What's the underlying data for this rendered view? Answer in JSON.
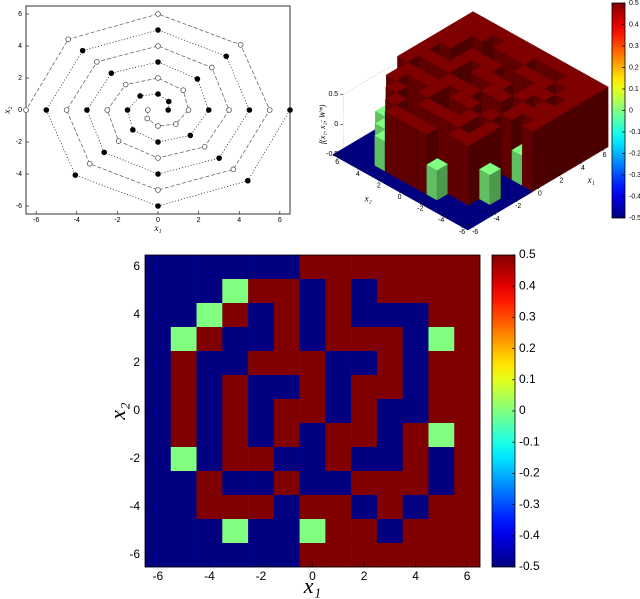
{
  "chart_data": [
    {
      "type": "scatter",
      "xlabel": "x₁",
      "ylabel": "x₂",
      "xlim": [
        -6.5,
        6.5
      ],
      "ylim": [
        -6.5,
        6.5
      ],
      "xticks": [
        -6,
        -4,
        -2,
        0,
        2,
        4,
        6
      ],
      "yticks": [
        -6,
        -4,
        -2,
        0,
        2,
        4,
        6
      ],
      "series": [
        {
          "color": "#000000",
          "marker": "filled",
          "line": "dotted",
          "x": [
            0.5,
            0.53,
            0,
            -0.88,
            -1.5,
            -1.24,
            0,
            1.59,
            2.5,
            1.94,
            0,
            -2.3,
            -3.5,
            -2.65,
            0,
            3.01,
            4.5,
            3.36,
            0,
            -3.71,
            -5.5,
            -4.07,
            0,
            4.42,
            6.5
          ],
          "y": [
            0,
            0.53,
            1.0,
            0.88,
            0,
            -1.24,
            -2.0,
            -1.59,
            0,
            1.94,
            3.0,
            2.3,
            0,
            -2.65,
            -4.0,
            -3.01,
            0,
            3.36,
            5.0,
            3.71,
            0,
            -4.07,
            -6.0,
            -4.42,
            0
          ]
        },
        {
          "color": "#555555",
          "marker": "open",
          "line": "dashed",
          "x": [
            -0.5,
            -0.53,
            0,
            0.88,
            1.5,
            1.24,
            0,
            -1.59,
            -2.5,
            -1.94,
            0,
            2.3,
            3.5,
            2.65,
            0,
            -3.01,
            -4.5,
            -3.36,
            0,
            3.71,
            5.5,
            4.07,
            0,
            -4.42,
            -6.5
          ],
          "y": [
            0,
            -0.53,
            -1.0,
            -0.88,
            0,
            1.24,
            2.0,
            1.59,
            0,
            -1.94,
            -3.0,
            -2.3,
            0,
            2.65,
            4.0,
            3.01,
            0,
            -3.36,
            -5.0,
            -3.71,
            0,
            4.07,
            6.0,
            4.42,
            0
          ]
        }
      ]
    },
    {
      "type": "surface3d",
      "xlabel": "x₁",
      "ylabel": "x₂",
      "zlabel": "f(x₁, x₂; W*)",
      "x": [
        -6,
        -5,
        -4,
        -3,
        -2,
        -1,
        0,
        1,
        2,
        3,
        4,
        5,
        6
      ],
      "y": [
        6,
        5,
        4,
        3,
        2,
        1,
        0,
        -1,
        -2,
        -3,
        -4,
        -5,
        -6
      ],
      "z": [
        [
          -0.5,
          -0.5,
          -0.5,
          -0.5,
          -0.5,
          -0.5,
          0.5,
          0.5,
          0.5,
          0.5,
          0.5,
          0.5,
          0.5
        ],
        [
          -0.5,
          -0.5,
          -0.5,
          0,
          0.5,
          0.5,
          -0.5,
          0.5,
          -0.5,
          0.5,
          0.5,
          0.5,
          0.5
        ],
        [
          -0.5,
          -0.5,
          0,
          0.5,
          -0.5,
          0.5,
          -0.5,
          0.5,
          -0.5,
          -0.5,
          -0.5,
          0.5,
          0.5
        ],
        [
          -0.5,
          0,
          0.5,
          -0.5,
          -0.5,
          0.5,
          -0.5,
          0.5,
          0.5,
          0.5,
          -0.5,
          0,
          0.5
        ],
        [
          -0.5,
          0.5,
          -0.5,
          -0.5,
          0.5,
          0.5,
          0.5,
          -0.5,
          -0.5,
          0.5,
          -0.5,
          0.5,
          0.5
        ],
        [
          -0.5,
          0.5,
          -0.5,
          0.5,
          -0.5,
          -0.5,
          0.5,
          -0.5,
          0.5,
          0.5,
          -0.5,
          0.5,
          0.5
        ],
        [
          -0.5,
          0.5,
          -0.5,
          0.5,
          -0.5,
          0.5,
          0.5,
          -0.5,
          0.5,
          -0.5,
          -0.5,
          0.5,
          0.5
        ],
        [
          -0.5,
          0.5,
          -0.5,
          0.5,
          -0.5,
          0.5,
          -0.5,
          0.5,
          0.5,
          -0.5,
          0.5,
          0,
          0.5
        ],
        [
          -0.5,
          0,
          -0.5,
          0.5,
          0.5,
          -0.5,
          -0.5,
          0.5,
          -0.5,
          -0.5,
          0.5,
          -0.5,
          0.5
        ],
        [
          -0.5,
          -0.5,
          0.5,
          -0.5,
          -0.5,
          0.5,
          -0.5,
          -0.5,
          0.5,
          0.5,
          0.5,
          -0.5,
          0.5
        ],
        [
          -0.5,
          -0.5,
          0.5,
          0.5,
          0.5,
          -0.5,
          0.5,
          0.5,
          -0.5,
          0.5,
          -0.5,
          0.5,
          0.5
        ],
        [
          -0.5,
          -0.5,
          -0.5,
          0,
          -0.5,
          -0.5,
          0,
          0.5,
          0.5,
          -0.5,
          0.5,
          0.5,
          0.5
        ],
        [
          -0.5,
          -0.5,
          -0.5,
          -0.5,
          -0.5,
          -0.5,
          0.5,
          0.5,
          0.5,
          0.5,
          0.5,
          0.5,
          0.5
        ]
      ],
      "xlim": [
        -6,
        6
      ],
      "ylim": [
        -6,
        6
      ],
      "zlim": [
        -0.5,
        0.5
      ],
      "xticks": [
        -6,
        -4,
        -2,
        0,
        2,
        4,
        6
      ],
      "yticks": [
        -6,
        -4,
        -2,
        0,
        2,
        4,
        6
      ],
      "zticks": [
        -0.5,
        0,
        0.5
      ],
      "clim": [
        -0.5,
        0.5
      ],
      "cticks": [
        -0.5,
        -0.4,
        -0.3,
        -0.2,
        -0.1,
        0,
        0.1,
        0.2,
        0.3,
        0.4,
        0.5
      ],
      "colormap": "jet"
    },
    {
      "type": "heatmap",
      "xlabel": "x₁",
      "ylabel": "x₂",
      "x": [
        -6,
        -5,
        -4,
        -3,
        -2,
        -1,
        0,
        1,
        2,
        3,
        4,
        5,
        6
      ],
      "y": [
        6,
        5,
        4,
        3,
        2,
        1,
        0,
        -1,
        -2,
        -3,
        -4,
        -5,
        -6
      ],
      "z": [
        [
          -0.5,
          -0.5,
          -0.5,
          -0.5,
          -0.5,
          -0.5,
          0.5,
          0.5,
          0.5,
          0.5,
          0.5,
          0.5,
          0.5
        ],
        [
          -0.5,
          -0.5,
          -0.5,
          0,
          0.5,
          0.5,
          -0.5,
          0.5,
          -0.5,
          0.5,
          0.5,
          0.5,
          0.5
        ],
        [
          -0.5,
          -0.5,
          0,
          0.5,
          -0.5,
          0.5,
          -0.5,
          0.5,
          -0.5,
          -0.5,
          -0.5,
          0.5,
          0.5
        ],
        [
          -0.5,
          0,
          0.5,
          -0.5,
          -0.5,
          0.5,
          -0.5,
          0.5,
          0.5,
          0.5,
          -0.5,
          0,
          0.5
        ],
        [
          -0.5,
          0.5,
          -0.5,
          -0.5,
          0.5,
          0.5,
          0.5,
          -0.5,
          -0.5,
          0.5,
          -0.5,
          0.5,
          0.5
        ],
        [
          -0.5,
          0.5,
          -0.5,
          0.5,
          -0.5,
          -0.5,
          0.5,
          -0.5,
          0.5,
          0.5,
          -0.5,
          0.5,
          0.5
        ],
        [
          -0.5,
          0.5,
          -0.5,
          0.5,
          -0.5,
          0.5,
          0.5,
          -0.5,
          0.5,
          -0.5,
          -0.5,
          0.5,
          0.5
        ],
        [
          -0.5,
          0.5,
          -0.5,
          0.5,
          -0.5,
          0.5,
          -0.5,
          0.5,
          0.5,
          -0.5,
          0.5,
          0,
          0.5
        ],
        [
          -0.5,
          0,
          -0.5,
          0.5,
          0.5,
          -0.5,
          -0.5,
          0.5,
          -0.5,
          -0.5,
          0.5,
          -0.5,
          0.5
        ],
        [
          -0.5,
          -0.5,
          0.5,
          -0.5,
          -0.5,
          0.5,
          -0.5,
          -0.5,
          0.5,
          0.5,
          0.5,
          -0.5,
          0.5
        ],
        [
          -0.5,
          -0.5,
          0.5,
          0.5,
          0.5,
          -0.5,
          0.5,
          0.5,
          -0.5,
          0.5,
          -0.5,
          0.5,
          0.5
        ],
        [
          -0.5,
          -0.5,
          -0.5,
          0,
          -0.5,
          -0.5,
          0,
          0.5,
          0.5,
          -0.5,
          0.5,
          0.5,
          0.5
        ],
        [
          -0.5,
          -0.5,
          -0.5,
          -0.5,
          -0.5,
          -0.5,
          0.5,
          0.5,
          0.5,
          0.5,
          0.5,
          0.5,
          0.5
        ]
      ],
      "xlim": [
        -6.5,
        6.5
      ],
      "ylim": [
        -6.5,
        6.5
      ],
      "xticks": [
        -6,
        -4,
        -2,
        0,
        2,
        4,
        6
      ],
      "yticks": [
        -6,
        -4,
        -2,
        0,
        2,
        4,
        6
      ],
      "clim": [
        -0.5,
        0.5
      ],
      "cticks": [
        -0.5,
        -0.4,
        -0.3,
        -0.2,
        -0.1,
        0,
        0.1,
        0.2,
        0.3,
        0.4,
        0.5
      ],
      "colormap": "jet"
    }
  ]
}
